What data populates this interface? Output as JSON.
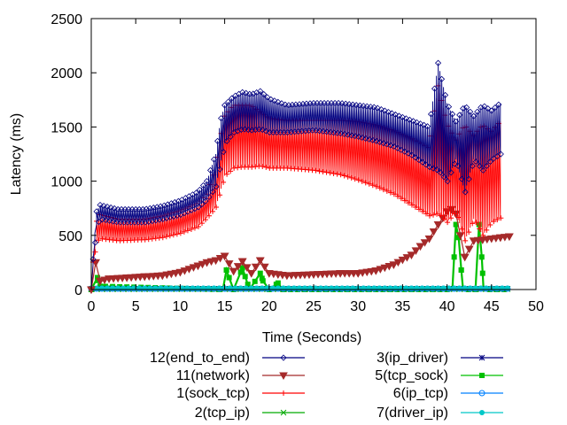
{
  "chart_data": {
    "type": "line",
    "title": "",
    "xlabel": "Time (Seconds)",
    "ylabel": "Latency (ms)",
    "xlim": [
      0,
      50
    ],
    "ylim": [
      0,
      2500
    ],
    "xticks": [
      0,
      5,
      10,
      15,
      20,
      25,
      30,
      35,
      40,
      45,
      50
    ],
    "yticks": [
      0,
      500,
      1000,
      1500,
      2000,
      2500
    ],
    "grid": false,
    "legend_position": "bottom",
    "series": [
      {
        "name": "12(end_to_end)",
        "color": "#000080",
        "marker": "diamond",
        "style": "band",
        "upper": [
          [
            0,
            0
          ],
          [
            0.3,
            420
          ],
          [
            0.6,
            720
          ],
          [
            1,
            780
          ],
          [
            3,
            740
          ],
          [
            6,
            740
          ],
          [
            8,
            770
          ],
          [
            10,
            820
          ],
          [
            12,
            900
          ],
          [
            13,
            1000
          ],
          [
            14,
            1250
          ],
          [
            14.5,
            1550
          ],
          [
            15,
            1700
          ],
          [
            16,
            1780
          ],
          [
            17,
            1820
          ],
          [
            18,
            1800
          ],
          [
            19,
            1830
          ],
          [
            20,
            1760
          ],
          [
            22,
            1700
          ],
          [
            25,
            1720
          ],
          [
            28,
            1720
          ],
          [
            30,
            1700
          ],
          [
            32,
            1680
          ],
          [
            34,
            1620
          ],
          [
            36,
            1560
          ],
          [
            38,
            1500
          ],
          [
            39,
            2090
          ],
          [
            40,
            1720
          ],
          [
            41,
            1550
          ],
          [
            42,
            1700
          ],
          [
            43,
            1600
          ],
          [
            44,
            1700
          ],
          [
            45,
            1650
          ],
          [
            46,
            1720
          ]
        ],
        "lower": [
          [
            0,
            0
          ],
          [
            0.3,
            350
          ],
          [
            0.6,
            600
          ],
          [
            1,
            650
          ],
          [
            3,
            620
          ],
          [
            6,
            620
          ],
          [
            8,
            650
          ],
          [
            10,
            690
          ],
          [
            12,
            760
          ],
          [
            13,
            830
          ],
          [
            14,
            950
          ],
          [
            14.5,
            1150
          ],
          [
            15,
            1350
          ],
          [
            16,
            1450
          ],
          [
            17,
            1480
          ],
          [
            18,
            1470
          ],
          [
            19,
            1480
          ],
          [
            20,
            1450
          ],
          [
            22,
            1450
          ],
          [
            25,
            1470
          ],
          [
            28,
            1440
          ],
          [
            30,
            1410
          ],
          [
            32,
            1370
          ],
          [
            34,
            1320
          ],
          [
            36,
            1240
          ],
          [
            38,
            1130
          ],
          [
            39,
            1100
          ],
          [
            40,
            1000
          ],
          [
            41,
            1200
          ],
          [
            42,
            900
          ],
          [
            43,
            1200
          ],
          [
            44,
            1100
          ],
          [
            45,
            1200
          ],
          [
            46,
            1250
          ]
        ]
      },
      {
        "name": "11(network)",
        "color": "#a52a2a",
        "marker": "triangle-down",
        "style": "line",
        "points": [
          [
            0,
            0
          ],
          [
            0.5,
            250
          ],
          [
            1,
            80
          ],
          [
            2,
            100
          ],
          [
            4,
            110
          ],
          [
            6,
            120
          ],
          [
            8,
            130
          ],
          [
            10,
            160
          ],
          [
            12,
            220
          ],
          [
            13,
            250
          ],
          [
            14,
            270
          ],
          [
            15,
            310
          ],
          [
            16,
            170
          ],
          [
            17,
            260
          ],
          [
            18,
            150
          ],
          [
            19,
            270
          ],
          [
            20,
            150
          ],
          [
            21,
            140
          ],
          [
            22,
            130
          ],
          [
            25,
            140
          ],
          [
            28,
            150
          ],
          [
            30,
            150
          ],
          [
            32,
            175
          ],
          [
            34,
            230
          ],
          [
            36,
            320
          ],
          [
            37,
            400
          ],
          [
            38,
            470
          ],
          [
            39,
            600
          ],
          [
            40,
            720
          ],
          [
            40.5,
            740
          ],
          [
            41,
            700
          ],
          [
            42,
            300
          ],
          [
            43,
            450
          ],
          [
            44,
            460
          ],
          [
            46,
            480
          ],
          [
            47,
            490
          ]
        ]
      },
      {
        "name": "1(sock_tcp)",
        "color": "#ff0000",
        "marker": "plus",
        "style": "band",
        "upper": [
          [
            0,
            0
          ],
          [
            0.3,
            380
          ],
          [
            0.6,
            630
          ],
          [
            1,
            690
          ],
          [
            3,
            650
          ],
          [
            6,
            650
          ],
          [
            8,
            680
          ],
          [
            10,
            730
          ],
          [
            12,
            800
          ],
          [
            13,
            880
          ],
          [
            14,
            1100
          ],
          [
            14.5,
            1400
          ],
          [
            15,
            1600
          ],
          [
            16,
            1700
          ],
          [
            17,
            1700
          ],
          [
            18,
            1700
          ],
          [
            19,
            1640
          ],
          [
            20,
            1580
          ],
          [
            22,
            1560
          ],
          [
            25,
            1560
          ],
          [
            28,
            1560
          ],
          [
            30,
            1550
          ],
          [
            32,
            1520
          ],
          [
            34,
            1470
          ],
          [
            36,
            1400
          ],
          [
            38,
            1300
          ],
          [
            39,
            1880
          ],
          [
            40,
            1540
          ],
          [
            41,
            1380
          ],
          [
            42,
            1520
          ],
          [
            43,
            1420
          ],
          [
            44,
            1520
          ],
          [
            45,
            1460
          ],
          [
            46,
            1550
          ]
        ],
        "lower": [
          [
            0,
            0
          ],
          [
            0.3,
            300
          ],
          [
            0.6,
            440
          ],
          [
            1,
            470
          ],
          [
            3,
            450
          ],
          [
            6,
            460
          ],
          [
            8,
            480
          ],
          [
            10,
            520
          ],
          [
            12,
            580
          ],
          [
            13,
            660
          ],
          [
            14,
            760
          ],
          [
            14.5,
            900
          ],
          [
            15,
            1050
          ],
          [
            16,
            1120
          ],
          [
            17,
            1130
          ],
          [
            18,
            1130
          ],
          [
            19,
            1140
          ],
          [
            20,
            1120
          ],
          [
            22,
            1120
          ],
          [
            25,
            1100
          ],
          [
            28,
            1060
          ],
          [
            30,
            1010
          ],
          [
            32,
            950
          ],
          [
            34,
            880
          ],
          [
            36,
            780
          ],
          [
            38,
            680
          ],
          [
            39,
            700
          ],
          [
            40,
            620
          ],
          [
            41,
            720
          ],
          [
            42,
            450
          ],
          [
            43,
            650
          ],
          [
            44,
            500
          ],
          [
            45,
            620
          ],
          [
            46,
            660
          ]
        ]
      },
      {
        "name": "2(tcp_ip)",
        "color": "#00aa00",
        "marker": "cross",
        "style": "line",
        "points": [
          [
            0,
            4
          ],
          [
            47,
            4
          ]
        ]
      },
      {
        "name": "3(ip_driver)",
        "color": "#000080",
        "marker": "star",
        "style": "line",
        "points": [
          [
            0,
            6
          ],
          [
            47,
            6
          ]
        ]
      },
      {
        "name": "5(tcp_sock)",
        "color": "#00c000",
        "marker": "square",
        "style": "spikes",
        "points": [
          [
            0,
            0
          ],
          [
            0.7,
            110
          ],
          [
            1,
            30
          ],
          [
            14.8,
            0
          ],
          [
            15.2,
            180
          ],
          [
            15.5,
            110
          ],
          [
            16,
            0
          ],
          [
            17,
            200
          ],
          [
            17.3,
            120
          ],
          [
            17.8,
            0
          ],
          [
            19,
            150
          ],
          [
            19.3,
            80
          ],
          [
            20,
            0
          ],
          [
            21,
            60
          ],
          [
            21.5,
            0
          ],
          [
            40.6,
            0
          ],
          [
            41,
            600
          ],
          [
            41.3,
            480
          ],
          [
            41.6,
            180
          ],
          [
            41.8,
            0
          ],
          [
            43.2,
            0
          ],
          [
            43.6,
            600
          ],
          [
            43.9,
            300
          ],
          [
            44.1,
            0
          ],
          [
            47,
            0
          ]
        ]
      },
      {
        "name": "6(ip_tcp)",
        "color": "#0080ff",
        "marker": "circle",
        "style": "line",
        "points": [
          [
            0,
            8
          ],
          [
            47,
            8
          ]
        ]
      },
      {
        "name": "7(driver_ip)",
        "color": "#00c8c8",
        "marker": "filled-circle",
        "style": "line",
        "points": [
          [
            0,
            12
          ],
          [
            47,
            12
          ]
        ]
      }
    ]
  }
}
